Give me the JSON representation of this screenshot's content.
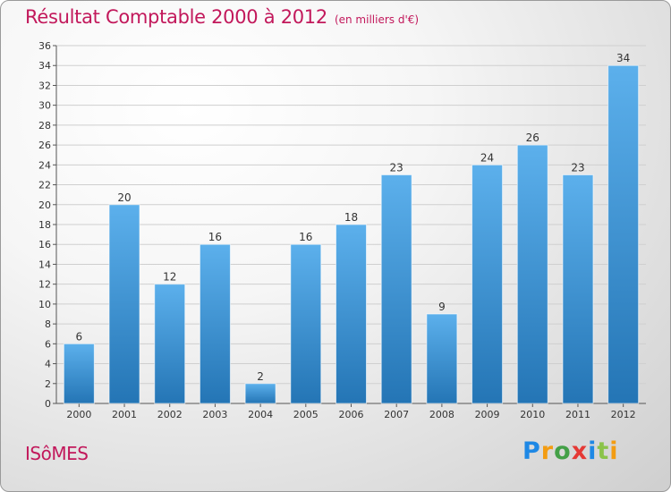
{
  "chart_data": {
    "type": "bar",
    "title": "Résultat Comptable 2000 à 2012",
    "subtitle": "(en milliers d'€)",
    "categories": [
      "2000",
      "2001",
      "2002",
      "2003",
      "2004",
      "2005",
      "2006",
      "2007",
      "2008",
      "2009",
      "2010",
      "2011",
      "2012"
    ],
    "values": [
      6,
      20,
      12,
      16,
      2,
      16,
      18,
      23,
      9,
      24,
      26,
      23,
      34
    ],
    "xlabel": "",
    "ylabel": "",
    "ylim": [
      0,
      36
    ],
    "ytick_step": 2,
    "grid": true,
    "bar_color": "#3a92d6",
    "title_color": "#c2185b"
  },
  "commune": "ISôMES",
  "logo": {
    "text": "Proxiti",
    "letters": [
      "P",
      "r",
      "o",
      "x",
      "i",
      "t",
      "i"
    ],
    "colors": [
      "#1e88e5",
      "#f39c12",
      "#43a047",
      "#e53935",
      "#1e88e5",
      "#8bc34a",
      "#f39c12"
    ]
  }
}
